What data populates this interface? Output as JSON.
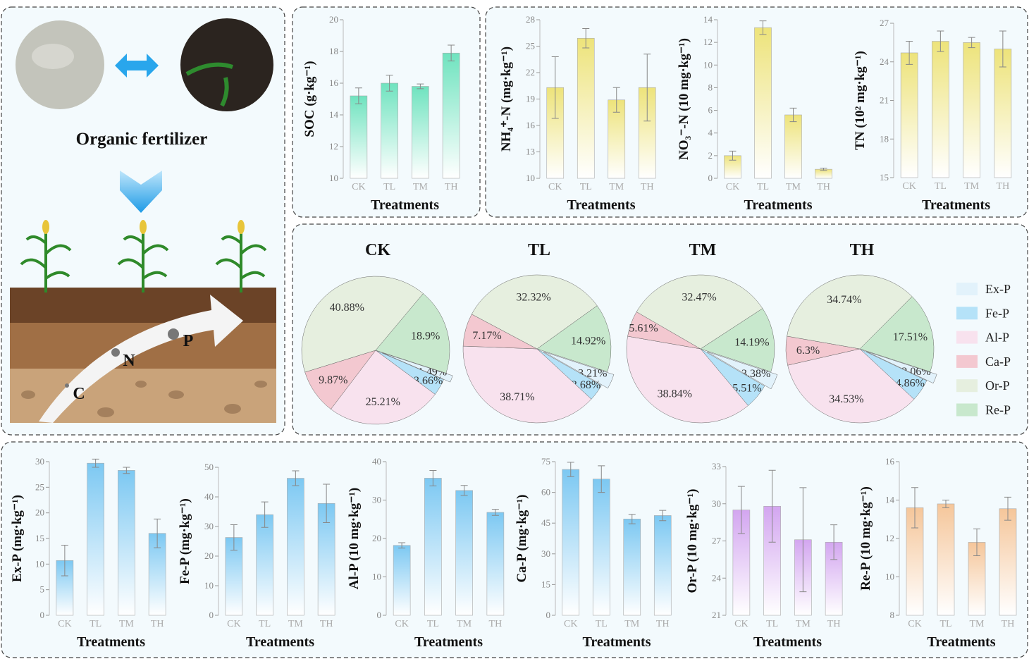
{
  "illustration": {
    "title": "Organic fertilizer",
    "nutrients": [
      "C",
      "N",
      "P"
    ]
  },
  "chart_data": [
    {
      "type": "bar",
      "ylabel": "SOC (g·kg⁻¹)",
      "xlabel": "Treatments",
      "categories": [
        "CK",
        "TL",
        "TM",
        "TH"
      ],
      "values": [
        15.2,
        16.0,
        15.8,
        17.9
      ],
      "errors": [
        0.5,
        0.5,
        0.15,
        0.5
      ],
      "color": "#6fe3bf",
      "ylim": [
        10,
        20
      ],
      "yticks": [
        10,
        12,
        14,
        16,
        18,
        20
      ]
    },
    {
      "type": "bar",
      "ylabel": "NH₄⁺-N (mg·kg⁻¹)",
      "xlabel": "Treatments",
      "categories": [
        "CK",
        "TL",
        "TM",
        "TH"
      ],
      "values": [
        20.3,
        25.9,
        18.9,
        20.3
      ],
      "errors": [
        3.5,
        1.1,
        1.4,
        3.8
      ],
      "color": "#ede37a",
      "ylim": [
        10,
        28
      ],
      "yticks": [
        10,
        13,
        16,
        19,
        22,
        25,
        28
      ]
    },
    {
      "type": "bar",
      "ylabel": "NO₃⁻-N (10 mg·kg⁻¹)",
      "xlabel": "Treatments",
      "categories": [
        "CK",
        "TL",
        "TM",
        "TH"
      ],
      "values": [
        2.0,
        13.3,
        5.6,
        0.8
      ],
      "errors": [
        0.4,
        0.6,
        0.6,
        0.1
      ],
      "color": "#ede37a",
      "ylim": [
        0,
        14
      ],
      "yticks": [
        0,
        2,
        4,
        6,
        8,
        10,
        12,
        14
      ]
    },
    {
      "type": "bar",
      "ylabel": "TN (10² mg·kg⁻¹)",
      "xlabel": "Treatments",
      "categories": [
        "CK",
        "TL",
        "TM",
        "TH"
      ],
      "values": [
        24.7,
        25.6,
        25.5,
        25.0
      ],
      "errors": [
        0.9,
        0.8,
        0.4,
        1.4
      ],
      "color": "#ede37a",
      "ylim": [
        15,
        27
      ],
      "yticks": [
        15,
        18,
        21,
        24,
        27
      ]
    },
    {
      "type": "pie",
      "title": "CK",
      "categories": [
        "Ex-P",
        "Fe-P",
        "Al-P",
        "Ca-P",
        "Or-P",
        "Re-P"
      ],
      "colors": [
        "#e2f2fb",
        "#b5e2f8",
        "#f8e2ee",
        "#f3c8d0",
        "#e6efdf",
        "#c8e8cd"
      ],
      "values": [
        1.49,
        3.66,
        25.21,
        9.87,
        40.88,
        18.9
      ],
      "value_labels": [
        "1.49%",
        "3.66%",
        "25.21%",
        "9.87%",
        "40.88%",
        "18.9%"
      ],
      "legend": "right"
    },
    {
      "type": "pie",
      "title": "TL",
      "categories": [
        "Ex-P",
        "Fe-P",
        "Al-P",
        "Ca-P",
        "Or-P",
        "Re-P"
      ],
      "colors": [
        "#e2f2fb",
        "#b5e2f8",
        "#f8e2ee",
        "#f3c8d0",
        "#e6efdf",
        "#c8e8cd"
      ],
      "values": [
        3.21,
        3.68,
        38.71,
        7.17,
        32.32,
        14.92
      ],
      "value_labels": [
        "3.21%",
        "3.68%",
        "38.71%",
        "7.17%",
        "32.32%",
        "14.92%"
      ]
    },
    {
      "type": "pie",
      "title": "TM",
      "categories": [
        "Ex-P",
        "Fe-P",
        "Al-P",
        "Ca-P",
        "Or-P",
        "Re-P"
      ],
      "colors": [
        "#e2f2fb",
        "#b5e2f8",
        "#f8e2ee",
        "#f3c8d0",
        "#e6efdf",
        "#c8e8cd"
      ],
      "values": [
        3.38,
        5.51,
        38.84,
        5.61,
        32.47,
        14.19
      ],
      "value_labels": [
        "3.38%",
        "5.51%",
        "38.84%",
        "5.61%",
        "32.47%",
        "14.19%"
      ]
    },
    {
      "type": "pie",
      "title": "TH",
      "categories": [
        "Ex-P",
        "Fe-P",
        "Al-P",
        "Ca-P",
        "Or-P",
        "Re-P"
      ],
      "colors": [
        "#e2f2fb",
        "#b5e2f8",
        "#f8e2ee",
        "#f3c8d0",
        "#e6efdf",
        "#c8e8cd"
      ],
      "values": [
        2.06,
        4.86,
        34.53,
        6.3,
        34.74,
        17.51
      ],
      "value_labels": [
        "2.06%",
        "4.86%",
        "34.53%",
        "6.3%",
        "34.74%",
        "17.51%"
      ]
    },
    {
      "type": "bar",
      "ylabel": "Ex-P (mg·kg⁻¹)",
      "xlabel": "Treatments",
      "categories": [
        "CK",
        "TL",
        "TM",
        "TH"
      ],
      "values": [
        10.7,
        29.7,
        28.3,
        16.0
      ],
      "errors": [
        3.0,
        0.8,
        0.6,
        2.8
      ],
      "color": "#7cc8f2",
      "ylim": [
        0,
        30
      ],
      "yticks": [
        0,
        5,
        10,
        15,
        20,
        25,
        30
      ]
    },
    {
      "type": "bar",
      "ylabel": "Fe-P (mg·kg⁻¹)",
      "xlabel": "Treatments",
      "categories": [
        "CK",
        "TL",
        "TM",
        "TH"
      ],
      "values": [
        26.3,
        34.0,
        46.3,
        37.8
      ],
      "errors": [
        4.3,
        4.3,
        2.5,
        6.5
      ],
      "color": "#7cc8f2",
      "ylim": [
        0,
        50
      ],
      "yticks": [
        0,
        10,
        20,
        30,
        40,
        50
      ]
    },
    {
      "type": "bar",
      "ylabel": "Al-P (10 mg·kg⁻¹)",
      "xlabel": "Treatments",
      "categories": [
        "CK",
        "TL",
        "TM",
        "TH"
      ],
      "values": [
        18.2,
        35.7,
        32.5,
        26.8
      ],
      "errors": [
        0.7,
        2.0,
        1.3,
        0.8
      ],
      "color": "#7cc8f2",
      "ylim": [
        0,
        40
      ],
      "yticks": [
        0,
        10,
        20,
        30,
        40
      ]
    },
    {
      "type": "bar",
      "ylabel": "Ca-P (mg·kg⁻¹)",
      "xlabel": "Treatments",
      "categories": [
        "CK",
        "TL",
        "TM",
        "TH"
      ],
      "values": [
        71.2,
        66.5,
        47.0,
        48.7
      ],
      "errors": [
        3.5,
        6.5,
        2.3,
        2.5
      ],
      "color": "#7cc8f2",
      "ylim": [
        0,
        75
      ],
      "yticks": [
        0,
        15,
        30,
        45,
        60,
        75
      ]
    },
    {
      "type": "bar",
      "ylabel": "Or-P (10 mg·kg⁻¹)",
      "xlabel": "Treatments",
      "categories": [
        "CK",
        "TL",
        "TM",
        "TH"
      ],
      "values": [
        29.5,
        29.8,
        27.1,
        26.9
      ],
      "errors": [
        1.9,
        2.9,
        4.2,
        1.4
      ],
      "color": "#d3a6f0",
      "ylim": [
        21,
        33
      ],
      "yticks": [
        21,
        24,
        27,
        30,
        33
      ]
    },
    {
      "type": "bar",
      "ylabel": "Re-P (10 mg·kg⁻¹)",
      "xlabel": "Treatments",
      "categories": [
        "CK",
        "TL",
        "TM",
        "TH"
      ],
      "values": [
        13.6,
        13.8,
        11.8,
        13.55
      ],
      "errors": [
        1.05,
        0.2,
        0.7,
        0.6
      ],
      "color": "#f5c69a",
      "ylim": [
        8,
        16
      ],
      "yticks": [
        8,
        10,
        12,
        14,
        16
      ]
    }
  ]
}
